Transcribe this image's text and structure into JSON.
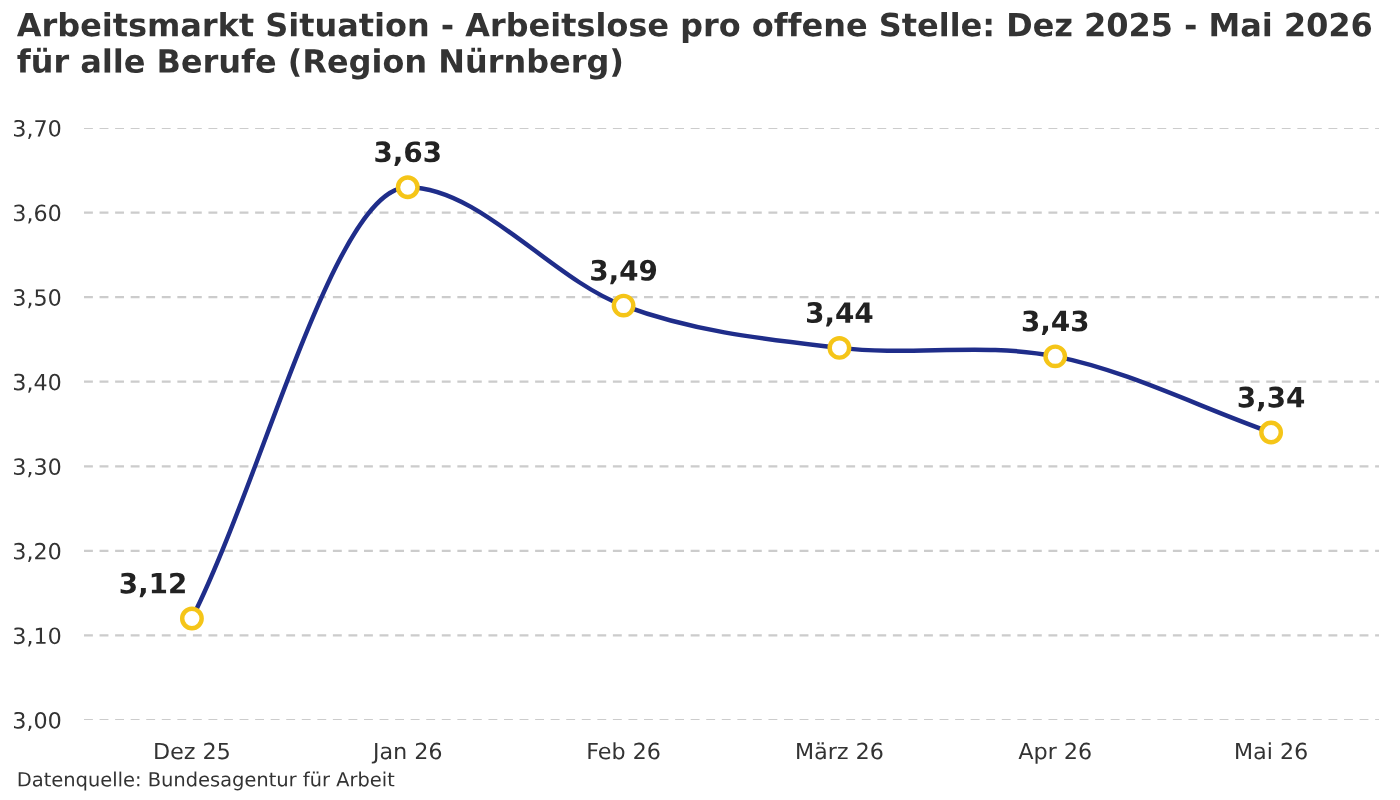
{
  "chart_data": {
    "type": "line",
    "title": "Arbeitsmarkt Situation - Arbeitslose pro offene Stelle: Dez 2025 - Mai 2026 für alle Berufe (Region Nürnberg)",
    "categories": [
      "Dez 25",
      "Jan 26",
      "Feb 26",
      "März 26",
      "Apr 26",
      "Mai 26"
    ],
    "series": [
      {
        "color": "#1f2d8a",
        "values": [
          3.12,
          3.63,
          3.49,
          3.44,
          3.43,
          3.34
        ],
        "value_labels": [
          "3,12",
          "3,63",
          "3,49",
          "3,44",
          "3,43",
          "3,34"
        ]
      }
    ],
    "ylim": [
      3.0,
      3.7
    ],
    "yticks": [
      {
        "value": 3.0,
        "label": "3,00"
      },
      {
        "value": 3.1,
        "label": "3,10"
      },
      {
        "value": 3.2,
        "label": "3,20"
      },
      {
        "value": 3.3,
        "label": "3,30"
      },
      {
        "value": 3.4,
        "label": "3,40"
      },
      {
        "value": 3.5,
        "label": "3,50"
      },
      {
        "value": 3.6,
        "label": "3,60"
      },
      {
        "value": 3.7,
        "label": "3,70"
      }
    ],
    "grid": "y",
    "marker": "circle",
    "line_style": "solid",
    "legend": false,
    "annotations": [
      "Datenquelle: Bundesagentur für Arbeit"
    ]
  }
}
